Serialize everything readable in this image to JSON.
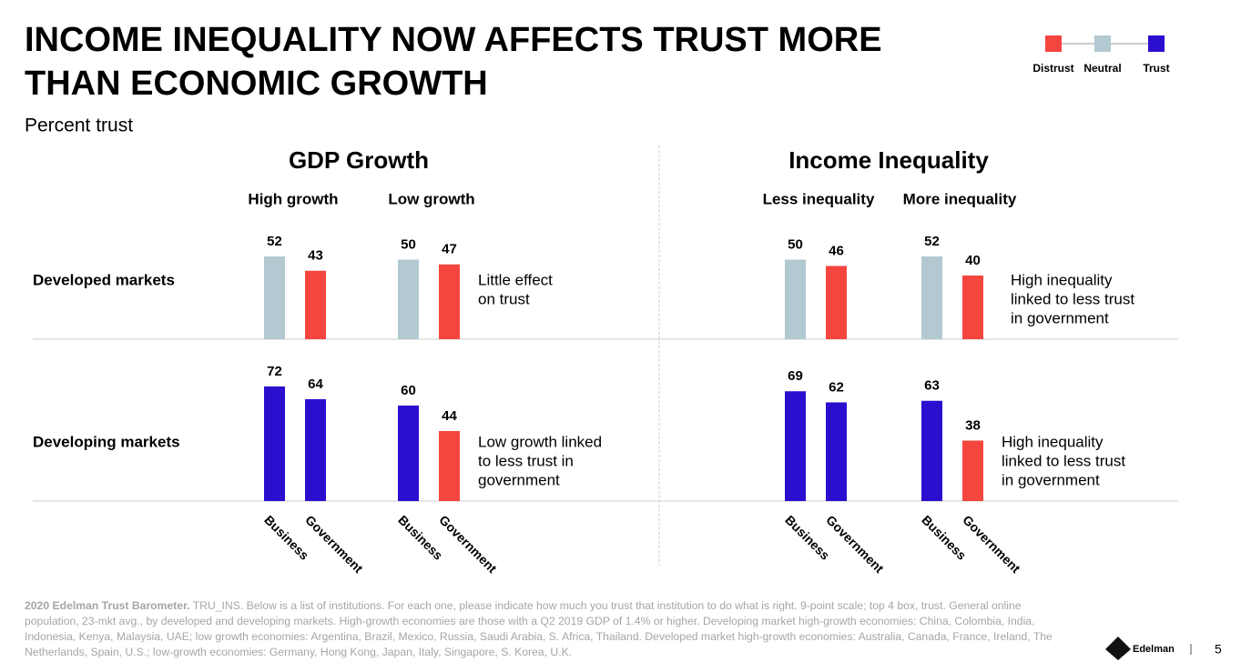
{
  "header": {
    "title": [
      "INCOME INEQUALITY NOW AFFECTS TRUST MORE",
      "THAN ECONOMIC GROWTH"
    ],
    "subtitle": "Percent trust"
  },
  "legend": [
    {
      "label": "Distrust",
      "color": "#f4463f"
    },
    {
      "label": "Neutral",
      "color": "#b3c9d1"
    },
    {
      "label": "Trust",
      "color": "#2a0fcf"
    }
  ],
  "rows": [
    "Developed markets",
    "Developing markets"
  ],
  "chart_data": [
    {
      "type": "bar",
      "title": "GDP Growth",
      "groups": [
        "High growth",
        "Low growth"
      ],
      "categories": [
        "Business",
        "Government",
        "Business",
        "Government"
      ],
      "values": [
        [
          52,
          43,
          50,
          47
        ],
        [
          72,
          64,
          60,
          44
        ]
      ],
      "colors": [
        [
          "#b3c9d1",
          "#f4463f",
          "#b3c9d1",
          "#f4463f"
        ],
        [
          "#2a0fcf",
          "#2a0fcf",
          "#2a0fcf",
          "#f4463f"
        ]
      ],
      "annotations": [
        [
          "Little effect",
          "on trust"
        ],
        [
          "Low growth linked",
          "to less trust in",
          "government"
        ]
      ]
    },
    {
      "type": "bar",
      "title": "Income Inequality",
      "groups": [
        "Less inequality",
        "More inequality"
      ],
      "categories": [
        "Business",
        "Government",
        "Business",
        "Government"
      ],
      "values": [
        [
          50,
          46,
          52,
          40
        ],
        [
          69,
          62,
          63,
          38
        ]
      ],
      "colors": [
        [
          "#b3c9d1",
          "#f4463f",
          "#b3c9d1",
          "#f4463f"
        ],
        [
          "#2a0fcf",
          "#2a0fcf",
          "#2a0fcf",
          "#f4463f"
        ]
      ],
      "annotations": [
        [
          "High inequality",
          "linked to less trust",
          "in government"
        ],
        [
          "High inequality",
          "linked to less trust",
          "in government"
        ]
      ]
    }
  ],
  "footer": {
    "source": "2020 Edelman Trust Barometer.",
    "text": "TRU_INS. Below is a list of institutions. For each one, please indicate how much you trust that institution to do what is right. 9-point scale; top 4 box, trust. General online population, 23-mkt avg., by developed and developing markets. High-growth economies are those with a Q2 2019 GDP of 1.4% or higher. Developing market high-growth economies: China, Colombia, India, Indonesia, Kenya, Malaysia, UAE; low growth economies: Argentina, Brazil, Mexico, Russia, Saudi Arabia, S. Africa, Thailand. Developed market high-growth economies: Australia, Canada, France, Ireland, The Netherlands, Spain, U.S.; low-growth economies: Germany, Hong Kong, Japan, Italy, Singapore, S. Korea, U.K.",
    "logo": "Edelman",
    "page": "5"
  }
}
